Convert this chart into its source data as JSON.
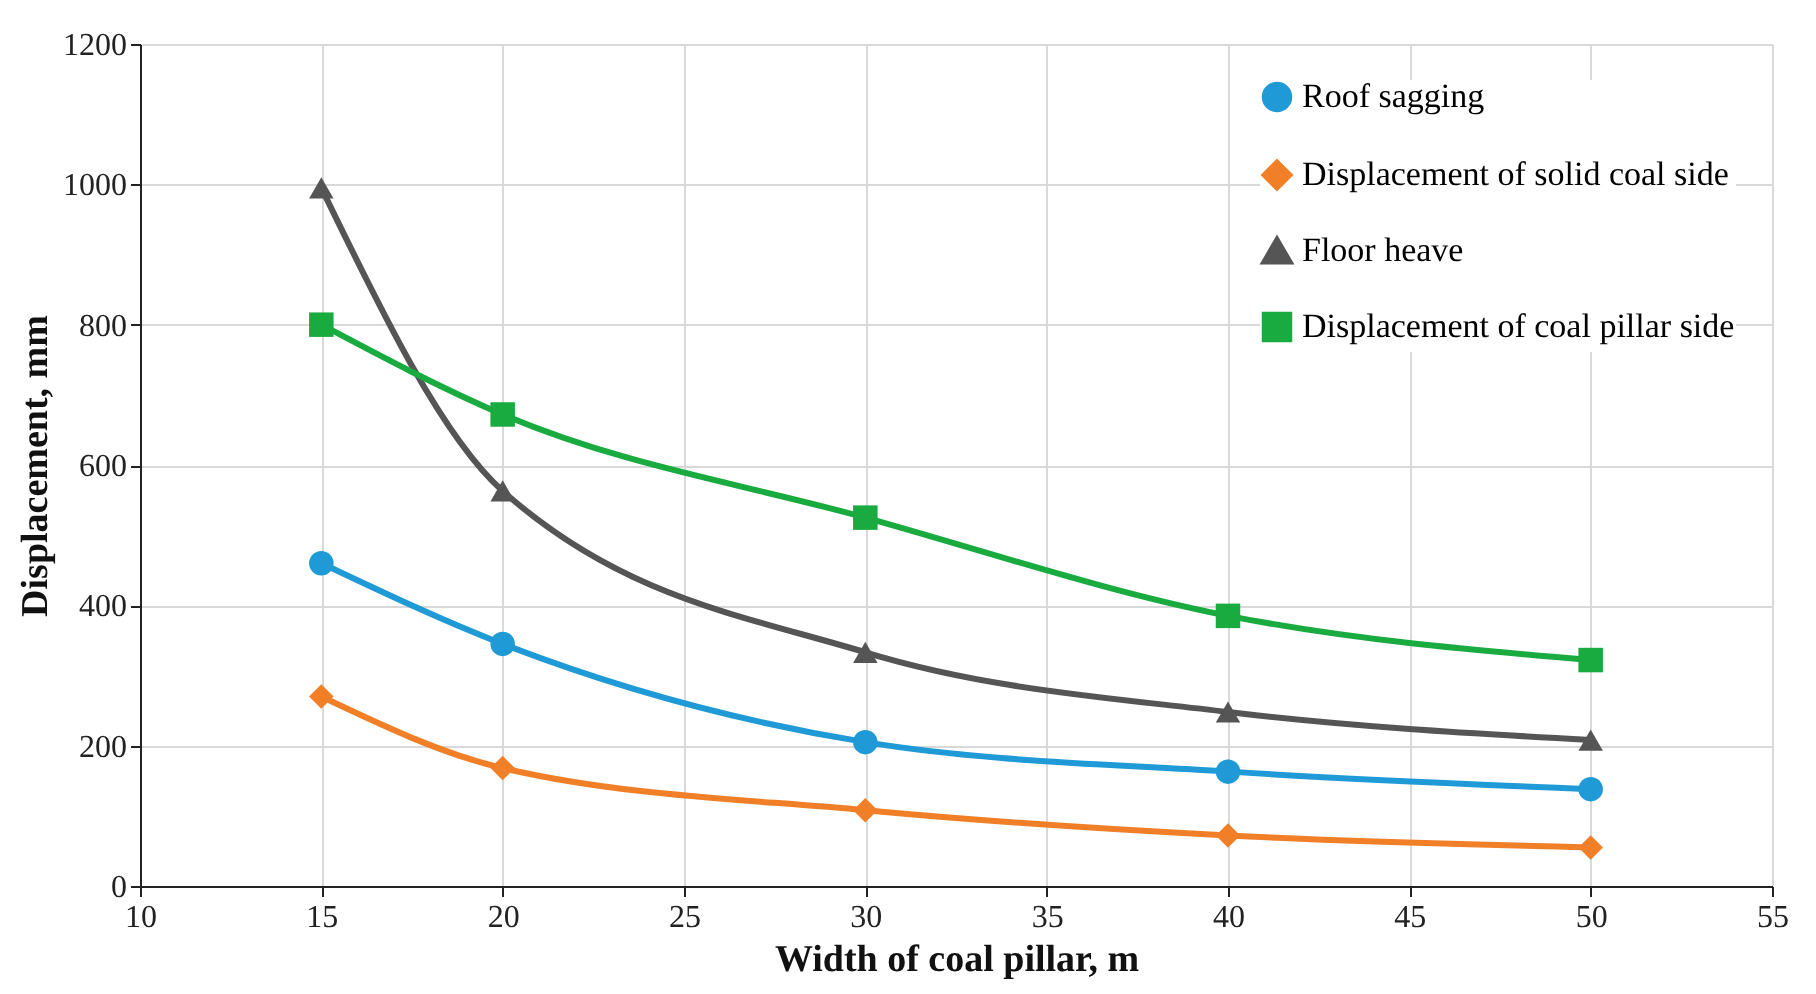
{
  "chart_data": {
    "type": "line",
    "xlabel": "Width of coal pillar, m",
    "ylabel": "Displacement, mm",
    "x": [
      15,
      20,
      30,
      40,
      50
    ],
    "series": [
      {
        "name": "Roof sagging",
        "color": "#1f9ad6",
        "marker": "circle",
        "values": [
          460,
          345,
          205,
          163,
          138
        ]
      },
      {
        "name": "Displacement of solid coal side",
        "color": "#f07f27",
        "marker": "diamond",
        "values": [
          270,
          168,
          108,
          72,
          55
        ]
      },
      {
        "name": "Floor heave",
        "color": "#555555",
        "marker": "triangle",
        "values": [
          995,
          563,
          333,
          248,
          208
        ]
      },
      {
        "name": "Displacement of coal pillar side",
        "color": "#1aab40",
        "marker": "square",
        "values": [
          800,
          672,
          525,
          385,
          322
        ]
      }
    ],
    "xlim": [
      10,
      55
    ],
    "xticks": [
      10,
      15,
      20,
      25,
      30,
      35,
      40,
      45,
      50,
      55
    ],
    "ylim": [
      0,
      1200
    ],
    "yticks": [
      0,
      200,
      400,
      600,
      800,
      1000,
      1200
    ],
    "grid": true,
    "legend": "top right",
    "line_style": "solid"
  }
}
